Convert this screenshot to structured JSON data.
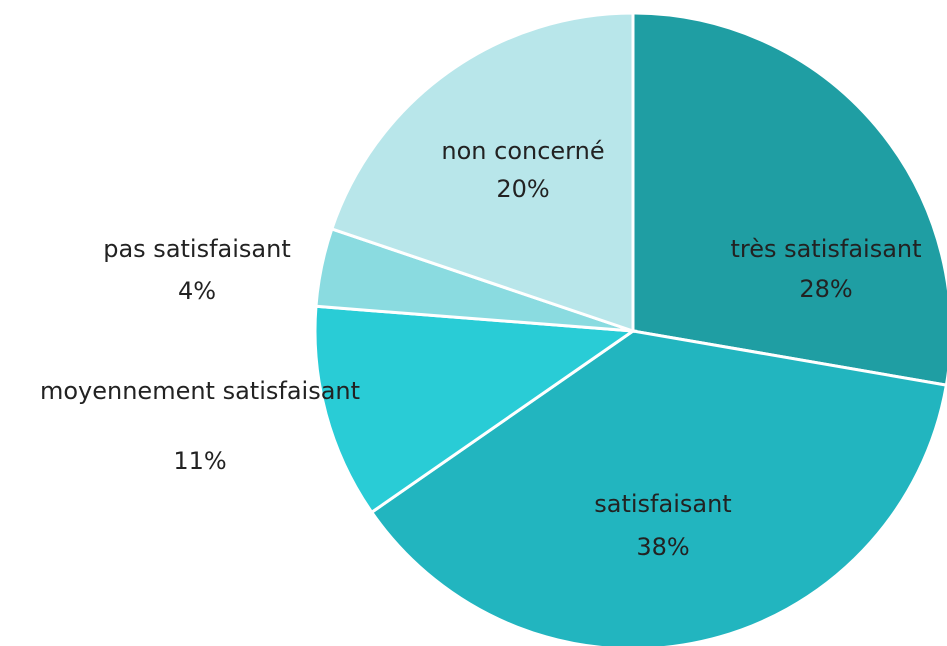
{
  "chart_data": {
    "type": "pie",
    "categories": [
      "très satisfaisant",
      "satisfaisant",
      "moyennement satisfaisant",
      "pas satisfaisant",
      "non concerné"
    ],
    "values": [
      28,
      38,
      11,
      4,
      20
    ],
    "value_labels": [
      "28%",
      "38%",
      "11%",
      "4%",
      "20%"
    ],
    "colors": [
      "#1f9ea3",
      "#22b5bf",
      "#29ccd6",
      "#8adbe0",
      "#b8e6ea"
    ]
  }
}
